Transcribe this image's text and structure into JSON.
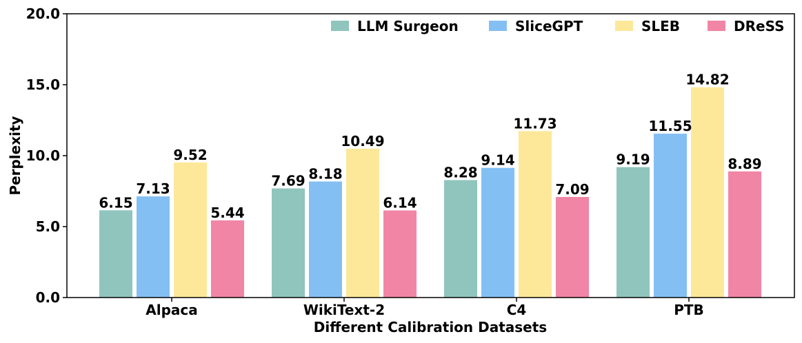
{
  "chart_data": {
    "type": "bar",
    "title": "",
    "xlabel": "Different Calibration Datasets",
    "ylabel": "Perplexity",
    "categories": [
      "Alpaca",
      "WikiText-2",
      "C4",
      "PTB"
    ],
    "ylim": [
      0,
      20
    ],
    "yticks": [
      "0.0",
      "5.0",
      "10.0",
      "15.0",
      "20.0"
    ],
    "legend_position": "top-right",
    "grid": false,
    "series": [
      {
        "name": "LLM Surgeon",
        "color": "#8fc5bd",
        "values": [
          6.15,
          7.69,
          8.28,
          9.19
        ],
        "labels": [
          "6.15",
          "7.69",
          "8.28",
          "9.19"
        ]
      },
      {
        "name": "SliceGPT",
        "color": "#84bff3",
        "values": [
          7.13,
          8.18,
          9.14,
          11.55
        ],
        "labels": [
          "7.13",
          "8.18",
          "9.14",
          "11.55"
        ]
      },
      {
        "name": "SLEB",
        "color": "#fde89a",
        "values": [
          9.52,
          10.49,
          11.73,
          14.82
        ],
        "labels": [
          "9.52",
          "10.49",
          "11.73",
          "14.82"
        ]
      },
      {
        "name": "DReSS",
        "color": "#f185a5",
        "values": [
          5.44,
          6.14,
          7.09,
          8.89
        ],
        "labels": [
          "5.44",
          "6.14",
          "7.09",
          "8.89"
        ]
      }
    ]
  }
}
